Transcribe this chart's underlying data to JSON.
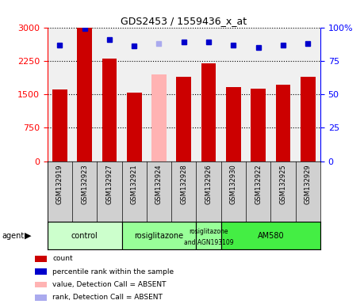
{
  "title": "GDS2453 / 1559436_x_at",
  "samples": [
    "GSM132919",
    "GSM132923",
    "GSM132927",
    "GSM132921",
    "GSM132924",
    "GSM132928",
    "GSM132926",
    "GSM132930",
    "GSM132922",
    "GSM132925",
    "GSM132929"
  ],
  "bar_values": [
    1600,
    3000,
    2300,
    1540,
    1950,
    1900,
    2200,
    1660,
    1620,
    1720,
    1900
  ],
  "bar_colors": [
    "#cc0000",
    "#cc0000",
    "#cc0000",
    "#cc0000",
    "#ffb3b3",
    "#cc0000",
    "#cc0000",
    "#cc0000",
    "#cc0000",
    "#cc0000",
    "#cc0000"
  ],
  "percentile_values": [
    87,
    99,
    91,
    86,
    88,
    89,
    89,
    87,
    85,
    87,
    88
  ],
  "percentile_colors": [
    "#0000cc",
    "#0000cc",
    "#0000cc",
    "#0000cc",
    "#aaaaee",
    "#0000cc",
    "#0000cc",
    "#0000cc",
    "#0000cc",
    "#0000cc",
    "#0000cc"
  ],
  "ylim_left": [
    0,
    3000
  ],
  "ylim_right": [
    0,
    100
  ],
  "yticks_left": [
    0,
    750,
    1500,
    2250,
    3000
  ],
  "yticks_right": [
    0,
    25,
    50,
    75,
    100
  ],
  "agents": [
    {
      "label": "control",
      "start": 0,
      "end": 3,
      "color": "#ccffcc"
    },
    {
      "label": "rosiglitazone",
      "start": 3,
      "end": 6,
      "color": "#99ff99"
    },
    {
      "label": "rosiglitazone\nand AGN193109",
      "start": 6,
      "end": 7,
      "color": "#99ff99"
    },
    {
      "label": "AM580",
      "start": 7,
      "end": 11,
      "color": "#44ee44"
    }
  ],
  "legend_items": [
    {
      "label": "count",
      "color": "#cc0000"
    },
    {
      "label": "percentile rank within the sample",
      "color": "#0000cc"
    },
    {
      "label": "value, Detection Call = ABSENT",
      "color": "#ffb3b3"
    },
    {
      "label": "rank, Detection Call = ABSENT",
      "color": "#aaaaee"
    }
  ],
  "agent_label": "agent",
  "bar_width": 0.6,
  "chart_bg": "#f0f0f0",
  "sample_bg": "#d0d0d0"
}
